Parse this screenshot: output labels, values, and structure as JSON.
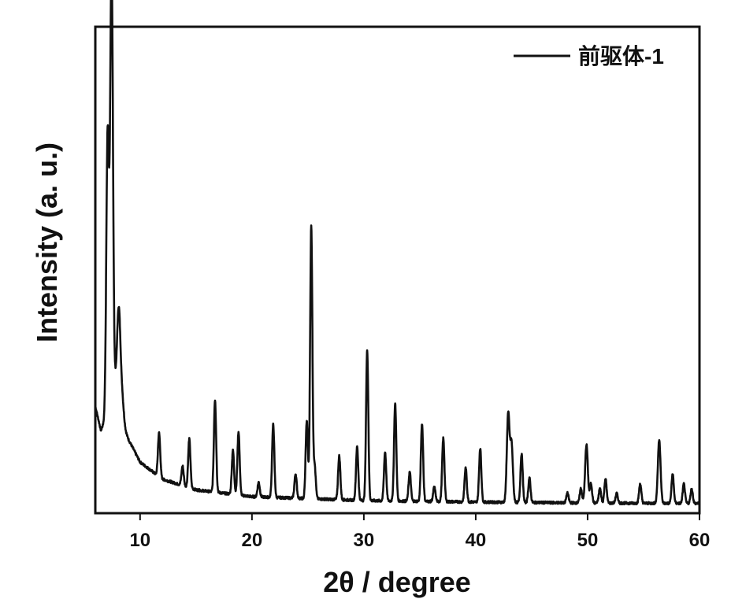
{
  "chart_data": {
    "type": "line",
    "xlabel": "2θ / degree",
    "ylabel": "Intensity (a. u.)",
    "xlim": [
      6,
      60
    ],
    "ylim": [
      0,
      100
    ],
    "x_ticks": [
      10,
      20,
      30,
      40,
      50,
      60
    ],
    "x_tick_labels": [
      "10",
      "20",
      "30",
      "40",
      "50",
      "60"
    ],
    "y_ticks_labeled": false,
    "grid": false,
    "legend_position": "top-right",
    "colors": {
      "line": "#111111",
      "frame": "#111111",
      "background": "#ffffff"
    },
    "series": [
      {
        "name": "前驱体-1",
        "baseline": [
          [
            6.0,
            22.0
          ],
          [
            6.5,
            17.0
          ],
          [
            7.0,
            20.0
          ],
          [
            7.6,
            29.0
          ],
          [
            8.3,
            19.0
          ],
          [
            9.0,
            15.0
          ],
          [
            10.0,
            10.5
          ],
          [
            12.0,
            7.0
          ],
          [
            15.0,
            4.8
          ],
          [
            20.0,
            3.4
          ],
          [
            30.0,
            2.6
          ],
          [
            40.0,
            2.3
          ],
          [
            50.0,
            2.1
          ],
          [
            60.0,
            2.0
          ]
        ],
        "peaks": [
          [
            7.1,
            57,
            0.12
          ],
          [
            7.45,
            86,
            0.12
          ],
          [
            8.1,
            20,
            0.15
          ],
          [
            8.4,
            5,
            0.15
          ],
          [
            11.7,
            9,
            0.1
          ],
          [
            13.8,
            4,
            0.1
          ],
          [
            14.4,
            10,
            0.1
          ],
          [
            16.7,
            19,
            0.1
          ],
          [
            18.3,
            9,
            0.1
          ],
          [
            18.8,
            13,
            0.1
          ],
          [
            20.6,
            3,
            0.1
          ],
          [
            21.9,
            15,
            0.1
          ],
          [
            23.9,
            5,
            0.1
          ],
          [
            24.9,
            16,
            0.1
          ],
          [
            25.3,
            56,
            0.1
          ],
          [
            25.6,
            7,
            0.1
          ],
          [
            27.8,
            9,
            0.1
          ],
          [
            29.4,
            11,
            0.1
          ],
          [
            30.3,
            31,
            0.1
          ],
          [
            31.9,
            10,
            0.1
          ],
          [
            32.8,
            20,
            0.1
          ],
          [
            34.1,
            6,
            0.1
          ],
          [
            35.2,
            16,
            0.1
          ],
          [
            36.3,
            3,
            0.1
          ],
          [
            37.1,
            13,
            0.1
          ],
          [
            39.1,
            7,
            0.1
          ],
          [
            40.4,
            11,
            0.1
          ],
          [
            42.9,
            18,
            0.12
          ],
          [
            43.2,
            12,
            0.12
          ],
          [
            44.1,
            10,
            0.1
          ],
          [
            44.8,
            5,
            0.1
          ],
          [
            48.2,
            2,
            0.1
          ],
          [
            49.4,
            3,
            0.1
          ],
          [
            49.9,
            12,
            0.12
          ],
          [
            50.3,
            4,
            0.1
          ],
          [
            51.1,
            3,
            0.1
          ],
          [
            51.6,
            5,
            0.1
          ],
          [
            52.6,
            2,
            0.1
          ],
          [
            54.7,
            4,
            0.1
          ],
          [
            56.4,
            13,
            0.12
          ],
          [
            57.6,
            6,
            0.1
          ],
          [
            58.6,
            4,
            0.1
          ],
          [
            59.3,
            3,
            0.1
          ]
        ]
      }
    ]
  }
}
